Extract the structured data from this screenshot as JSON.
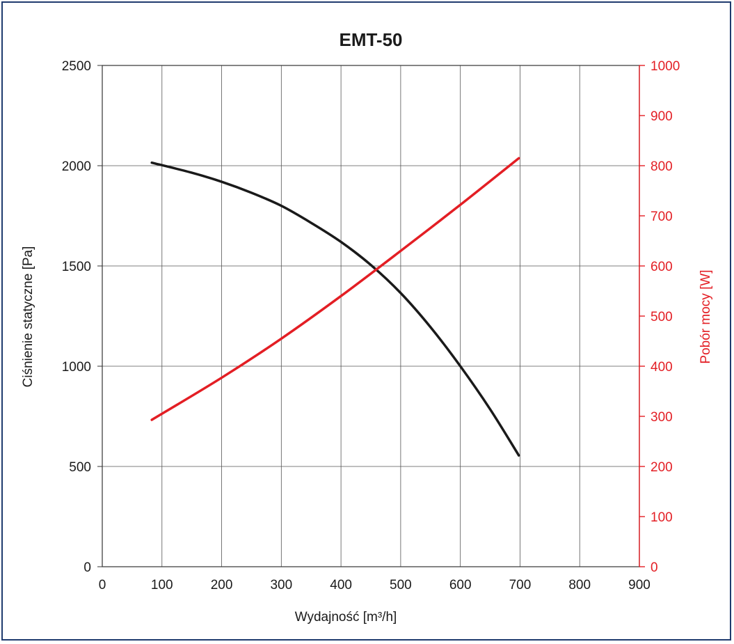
{
  "chart_data": {
    "type": "line",
    "title": "EMT-50",
    "xlabel": "Wydajność [m³/h]",
    "ylabel": "Ciśnienie statyczne [Pa]",
    "y2label": "Pobór mocy [W]",
    "xlim": [
      0,
      900
    ],
    "ylim": [
      0,
      2500
    ],
    "y2lim": [
      0,
      1000
    ],
    "x_ticks": [
      0,
      100,
      200,
      300,
      400,
      500,
      600,
      700,
      800,
      900
    ],
    "y_ticks": [
      0,
      500,
      1000,
      1500,
      2000,
      2500
    ],
    "y2_ticks": [
      0,
      100,
      200,
      300,
      400,
      500,
      600,
      700,
      800,
      900,
      1000
    ],
    "grid": true,
    "colors": {
      "pressure": "#1a1a1a",
      "power": "#e31e24",
      "frame": "#1f3b6e",
      "grid": "#555555"
    },
    "series": [
      {
        "axis": "left",
        "x": [
          83,
          150,
          200,
          250,
          300,
          350,
          400,
          450,
          500,
          550,
          600,
          650,
          698
        ],
        "y": [
          2015,
          1965,
          1920,
          1865,
          1800,
          1715,
          1620,
          1505,
          1365,
          1195,
          1000,
          785,
          555
        ]
      },
      {
        "axis": "right",
        "x": [
          83,
          200,
          300,
          400,
          500,
          600,
          698
        ],
        "y": [
          293,
          377,
          455,
          540,
          630,
          722,
          815
        ]
      }
    ]
  }
}
